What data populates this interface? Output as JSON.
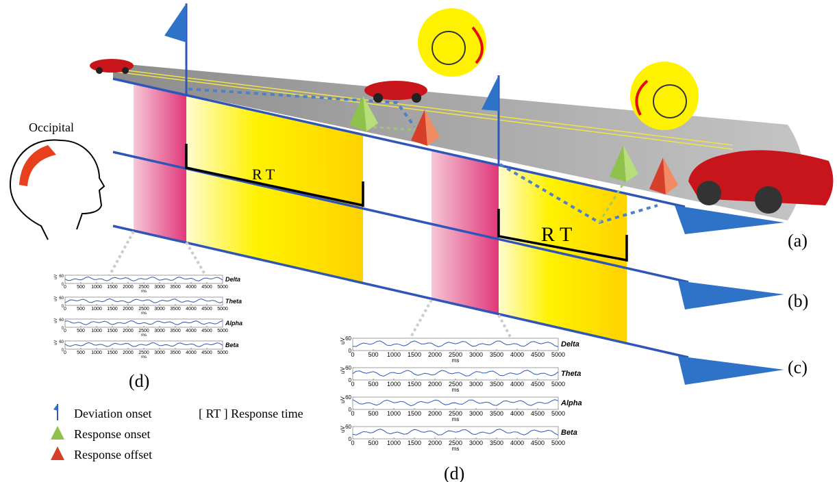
{
  "labels": {
    "occipital": "Occipital",
    "panel_a": "(a)",
    "panel_b": "(b)",
    "panel_c": "(c)",
    "rt_left": "R T",
    "rt_right": "R T",
    "d_left": "(d)",
    "d_right": "(d)"
  },
  "legend": {
    "deviation_onset": "Deviation onset",
    "response_onset": "Response onset",
    "response_offset": "Response offset",
    "response_time": "[ RT ]  Response time"
  },
  "eeg_panels": [
    {
      "bands": [
        "Delta",
        "Theta",
        "Alpha",
        "Beta"
      ],
      "y_unit": "uV",
      "x_unit": "ms",
      "yticks": [
        0,
        60
      ],
      "xticks": [
        0,
        500,
        1000,
        1500,
        2000,
        2500,
        3000,
        3500,
        4000,
        4500,
        5000
      ]
    },
    {
      "bands": [
        "Delta",
        "Theta",
        "Alpha",
        "Beta"
      ],
      "y_unit": "uV",
      "x_unit": "ms",
      "yticks": [
        0,
        60
      ],
      "xticks": [
        0,
        500,
        1000,
        1500,
        2000,
        2500,
        3000,
        3500,
        4000,
        4500,
        5000
      ]
    }
  ]
}
